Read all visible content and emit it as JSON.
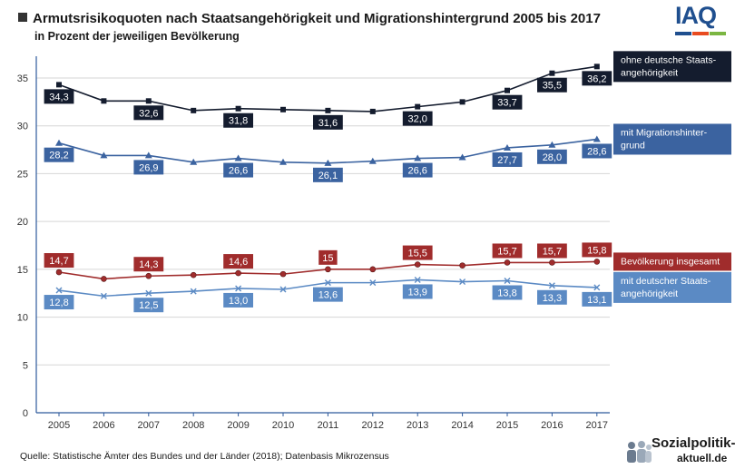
{
  "header": {
    "title": "Armutsrisikoquoten nach Staatsangehörigkeit und Migrationshintergrund 2005 bis 2017",
    "subtitle": "in Prozent der jeweiligen Bevölkerung",
    "logo": "IAQ",
    "logo_colors": [
      "#1f4f8f",
      "#e84b20",
      "#7bb642"
    ]
  },
  "footer": {
    "source": "Quelle: Statistische Ämter des Bundes und der Länder (2018); Datenbasis Mikrozensus",
    "brand_line1": "Sozialpolitik-",
    "brand_line2": "aktuell.de"
  },
  "chart_data": {
    "type": "line",
    "title": "Armutsrisikoquoten nach Staatsangehörigkeit und Migrationshintergrund 2005 bis 2017",
    "subtitle": "in Prozent der jeweiligen Bevölkerung",
    "categories": [
      "2005",
      "2006",
      "2007",
      "2008",
      "2009",
      "2010",
      "2011",
      "2012",
      "2013",
      "2014",
      "2015",
      "2016",
      "2017"
    ],
    "ylim": [
      0,
      37
    ],
    "yticks": [
      0,
      5,
      10,
      15,
      20,
      25,
      30,
      35
    ],
    "grid": true,
    "legend": "right, labels at line ends",
    "series": [
      {
        "name": "ohne deutsche Staatsangehörigkeit",
        "legend_lines": [
          "ohne deutsche Staats-",
          "angehörigkeit"
        ],
        "color": "#141c2e",
        "marker": "square",
        "values": [
          34.3,
          32.6,
          32.6,
          31.6,
          31.8,
          31.7,
          31.6,
          31.5,
          32.0,
          32.5,
          33.7,
          35.5,
          36.2
        ],
        "labels": [
          "34,3",
          null,
          "32,6",
          null,
          "31,8",
          null,
          "31,6",
          null,
          "32,0",
          null,
          "33,7",
          "35,5",
          "36,2"
        ],
        "label_pos": [
          "below",
          null,
          "below",
          null,
          "below",
          null,
          "below",
          null,
          "below",
          null,
          "below",
          "below",
          "below"
        ]
      },
      {
        "name": "mit Migrationshintergrund",
        "legend_lines": [
          "mit Migrationshinter-",
          "grund"
        ],
        "color": "#3b63a0",
        "marker": "triangle",
        "values": [
          28.2,
          26.9,
          26.9,
          26.2,
          26.6,
          26.2,
          26.1,
          26.3,
          26.6,
          26.7,
          27.7,
          28.0,
          28.6
        ],
        "labels": [
          "28,2",
          null,
          "26,9",
          null,
          "26,6",
          null,
          "26,1",
          null,
          "26,6",
          null,
          "27,7",
          "28,0",
          "28,6"
        ],
        "label_pos": [
          "below",
          null,
          "below",
          null,
          "below",
          null,
          "below",
          null,
          "below",
          null,
          "below",
          "below",
          "below"
        ]
      },
      {
        "name": "Bevölkerung insgesamt",
        "legend_lines": [
          "Bevölkerung insgesamt"
        ],
        "color": "#a02c2c",
        "marker": "circle",
        "values": [
          14.7,
          14.0,
          14.3,
          14.4,
          14.6,
          14.5,
          15.0,
          15.0,
          15.5,
          15.4,
          15.7,
          15.7,
          15.8
        ],
        "labels": [
          "14,7",
          null,
          "14,3",
          null,
          "14,6",
          null,
          "15",
          null,
          "15,5",
          null,
          "15,7",
          "15,7",
          "15,8"
        ],
        "label_pos": [
          "above",
          null,
          "above",
          null,
          "above",
          null,
          "above",
          null,
          "above",
          null,
          "above",
          "above",
          "above"
        ]
      },
      {
        "name": "mit deutscher Staatsangehörigkeit",
        "legend_lines": [
          "mit deutscher Staats-",
          "angehörigkeit"
        ],
        "color": "#5b8ac4",
        "marker": "x",
        "values": [
          12.8,
          12.2,
          12.5,
          12.7,
          13.0,
          12.9,
          13.6,
          13.6,
          13.9,
          13.7,
          13.8,
          13.3,
          13.1
        ],
        "labels": [
          "12,8",
          null,
          "12,5",
          null,
          "13,0",
          null,
          "13,6",
          null,
          "13,9",
          null,
          "13,8",
          "13,3",
          "13,1"
        ],
        "label_pos": [
          "below",
          null,
          "below",
          null,
          "below",
          null,
          "below",
          null,
          "below",
          null,
          "below",
          "below",
          "below"
        ]
      }
    ]
  }
}
